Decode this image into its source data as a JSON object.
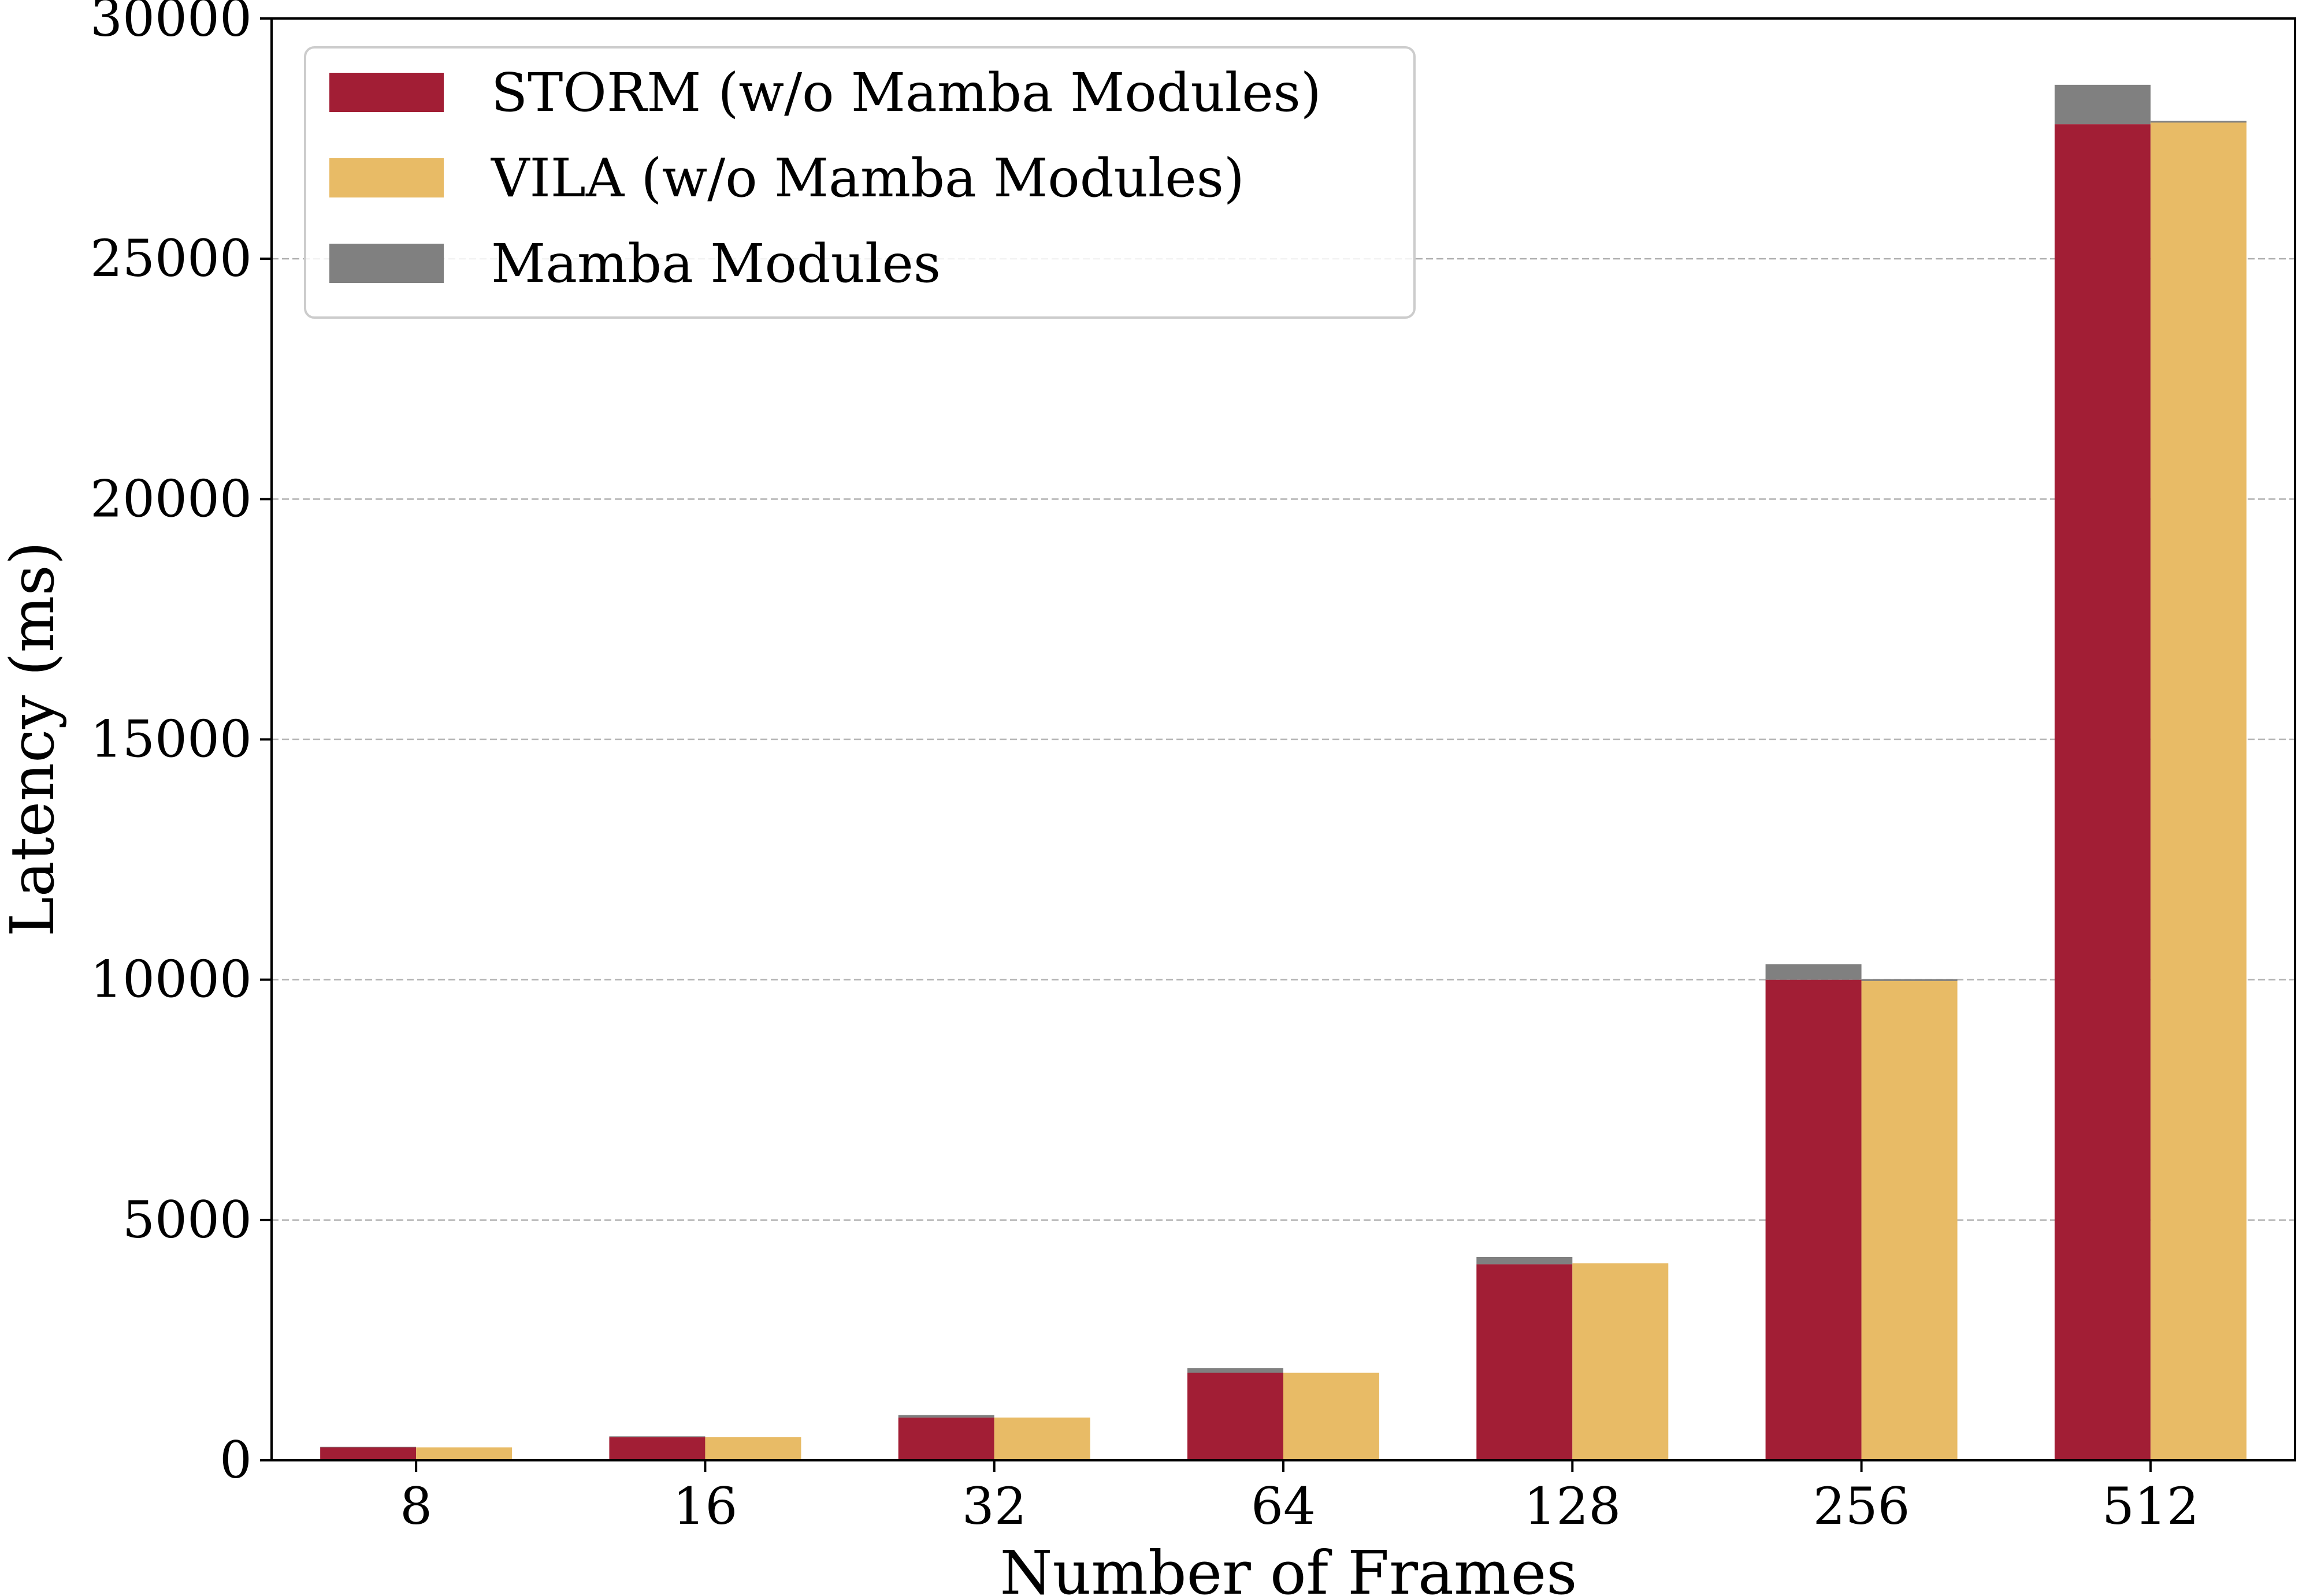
{
  "chart_data": {
    "type": "bar",
    "stacked_grouped": true,
    "title": "",
    "xlabel": "Number of Frames",
    "ylabel": "Latency (ms)",
    "categories": [
      "8",
      "16",
      "32",
      "64",
      "128",
      "256",
      "512"
    ],
    "ylim": [
      0,
      30000
    ],
    "yticks": [
      "0",
      "5000",
      "10000",
      "15000",
      "20000",
      "25000",
      "30000"
    ],
    "grid": "horizontal dashed",
    "legend_position": "top-left",
    "series": [
      {
        "name": "STORM (w/o Mamba Modules)",
        "color": "#A21E35",
        "group": "STORM",
        "values": [
          270,
          480,
          890,
          1820,
          4080,
          10000,
          27800
        ]
      },
      {
        "name": "VILA (w/o Mamba Modules)",
        "color": "#E8BB66",
        "group": "VILA",
        "values": [
          270,
          480,
          890,
          1820,
          4100,
          10000,
          27850
        ]
      },
      {
        "name": "Mamba Modules",
        "color": "#808080",
        "stacked_on": [
          "STORM (w/o Mamba Modules)",
          "VILA (w/o Mamba Modules)"
        ],
        "storm_values": [
          10,
          20,
          50,
          100,
          150,
          320,
          820
        ],
        "vila_values": [
          0,
          0,
          0,
          0,
          0,
          10,
          20
        ]
      }
    ]
  }
}
